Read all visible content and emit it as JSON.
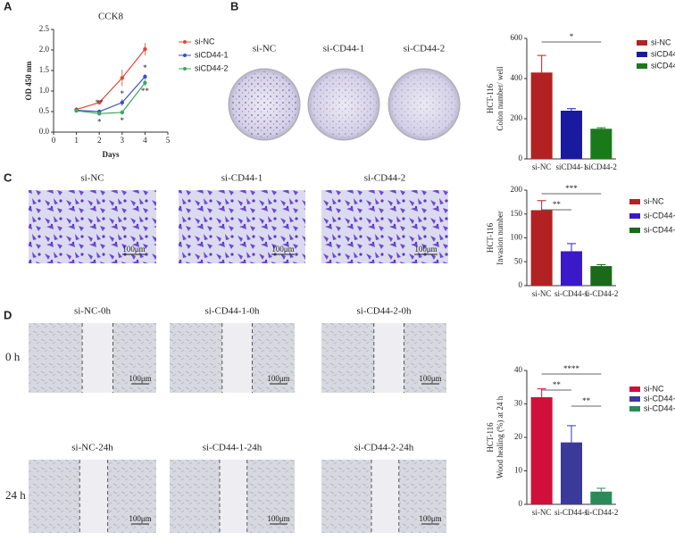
{
  "panel_labels": [
    "A",
    "B",
    "C",
    "D"
  ],
  "colony_images": [
    "si-NC",
    "si-CD44-1",
    "si-CD44-2"
  ],
  "invasion_images": [
    "si-NC",
    "si-CD44-1",
    "si-CD44-2"
  ],
  "wound_images": {
    "rows": [
      "0 h",
      "24 h"
    ],
    "labels": [
      [
        "si-NC-0h",
        "si-CD44-1-0h",
        "si-CD44-2-0h"
      ],
      [
        "si-NC-24h",
        "si-CD44-1-24h",
        "si-CD44-2-24h"
      ]
    ]
  },
  "scale_bar": "100μm",
  "chart_data": [
    {
      "type": "line",
      "title": "CCK8",
      "xlabel": "Days",
      "ylabel": "OD 450 nm",
      "x": [
        1,
        2,
        3,
        4
      ],
      "xlim": [
        0,
        5
      ],
      "xticks": [
        0,
        1,
        2,
        3,
        4,
        5
      ],
      "ylim": [
        0,
        2.5
      ],
      "yticks": [
        {
          "value": 0,
          "label": "0.0"
        },
        0.5,
        {
          "value": 1,
          "label": "1.0"
        },
        1.5,
        {
          "value": 2,
          "label": "2.0"
        },
        2.5
      ],
      "series": [
        {
          "name": "si-NC",
          "color": "#e8443a",
          "values": [
            0.55,
            0.72,
            1.32,
            2.02
          ],
          "errors": [
            0.05,
            0.05,
            0.2,
            0.15
          ]
        },
        {
          "name": "siCD44-1",
          "color": "#3a4fc8",
          "values": [
            0.53,
            0.5,
            0.72,
            1.35
          ],
          "errors": [
            0.04,
            0.04,
            0.08,
            0.06
          ],
          "significance": [
            null,
            "**",
            "*",
            "*"
          ]
        },
        {
          "name": "siCD44-2",
          "color": "#3aaa5a",
          "values": [
            0.52,
            0.45,
            0.48,
            1.2
          ],
          "errors": [
            0.04,
            0.03,
            0.05,
            0.08
          ],
          "significance": [
            null,
            "*",
            "*",
            "**"
          ]
        }
      ]
    },
    {
      "type": "bar",
      "ylabel": [
        "HCT-116",
        "Colon number/ well"
      ],
      "categories": [
        "si-NC",
        "siCD44-1",
        "siCD44-2"
      ],
      "values": [
        430,
        240,
        150
      ],
      "errors": [
        85,
        10,
        5
      ],
      "colors": [
        "#b22222",
        "#1a1aa0",
        "#1a7a1a"
      ],
      "ylim": [
        0,
        600
      ],
      "yticks": [
        0,
        200,
        400,
        600
      ],
      "brackets": [
        {
          "text": "*",
          "between": [
            "si-NC",
            "siCD44-2"
          ]
        }
      ]
    },
    {
      "type": "bar",
      "ylabel": [
        "HCT-116",
        "Invasion number"
      ],
      "categories": [
        "si-NC",
        "si-CD44-1",
        "si-CD44-2"
      ],
      "values": [
        158,
        72,
        41
      ],
      "errors": [
        20,
        16,
        3
      ],
      "colors": [
        "#b22222",
        "#3a1ac8",
        "#1a6a1a"
      ],
      "ylim": [
        0,
        200
      ],
      "yticks": [
        0,
        50,
        100,
        150,
        200
      ],
      "brackets": [
        {
          "text": "***",
          "between": [
            "si-NC",
            "si-CD44-2"
          ]
        },
        {
          "text": "**",
          "between": [
            "si-NC",
            "si-CD44-1"
          ]
        }
      ]
    },
    {
      "type": "bar",
      "ylabel": [
        "HCT-116",
        "Wood healing  (%) at 24 h"
      ],
      "categories": [
        "si-NC",
        "si-CD44-1",
        "si-CD44-2"
      ],
      "values": [
        32,
        18.5,
        3.8
      ],
      "errors": [
        2.5,
        5,
        1
      ],
      "colors": [
        "#d0103a",
        "#3a3a9a",
        "#2a8a5a"
      ],
      "ylim": [
        0,
        40
      ],
      "yticks": [
        0,
        10,
        20,
        30,
        40
      ],
      "brackets": [
        {
          "text": "****",
          "between": [
            "si-NC",
            "si-CD44-2"
          ]
        },
        {
          "text": "**",
          "between": [
            "si-NC",
            "si-CD44-1"
          ]
        },
        {
          "text": "**",
          "between": [
            "si-CD44-1",
            "si-CD44-2"
          ]
        }
      ]
    }
  ]
}
